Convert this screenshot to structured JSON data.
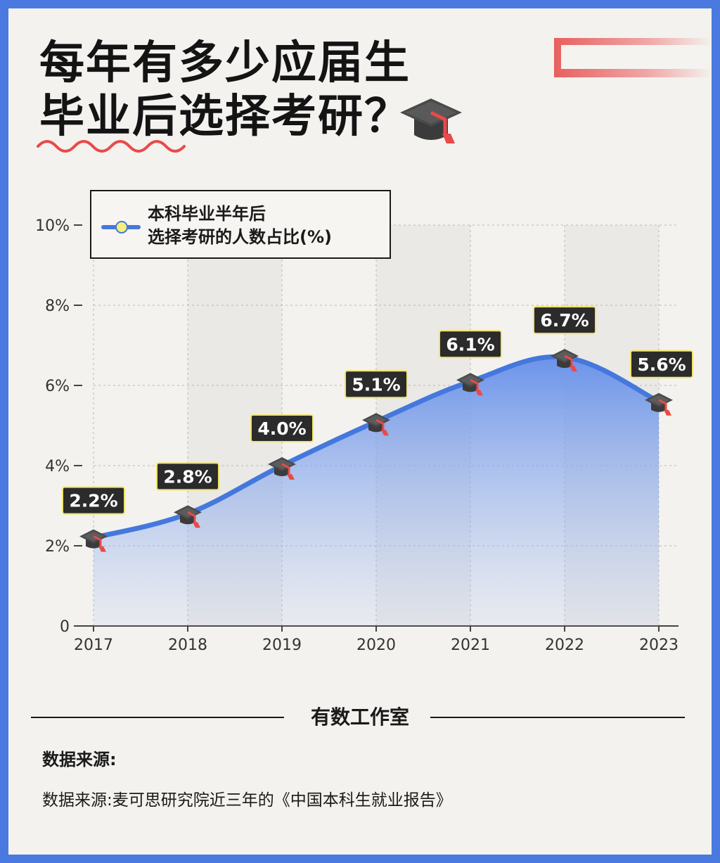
{
  "header": {
    "title_line1": "每年有多少应届生",
    "title_line2": "毕业后选择考研？"
  },
  "colors": {
    "accent": "#4478dd",
    "area_top": "#6b93ea",
    "highlight": "#e84a4a",
    "label_bg": "#2b2b2b",
    "label_border": "#f0e46a"
  },
  "icons": {
    "title": "graduation-cap-icon",
    "marker": "graduation-cap-icon"
  },
  "chart_data": {
    "type": "area",
    "title": "",
    "xlabel": "",
    "ylabel": "",
    "categories": [
      "2017",
      "2018",
      "2019",
      "2020",
      "2021",
      "2022",
      "2023"
    ],
    "series": [
      {
        "name": "本科毕业半年后选择考研的人数占比(%)",
        "values": [
          2.2,
          2.8,
          4.0,
          5.1,
          6.1,
          6.7,
          5.6
        ],
        "labels": [
          "2.2%",
          "2.8%",
          "4.0%",
          "5.1%",
          "6.1%",
          "6.7%",
          "5.6%"
        ]
      }
    ],
    "ylim": [
      0,
      10
    ],
    "yticks": [
      0,
      2,
      4,
      6,
      8,
      10
    ],
    "ytick_labels": [
      "0",
      "2%",
      "4%",
      "6%",
      "8%",
      "10%"
    ],
    "grid": true,
    "legend": {
      "position": "top-left",
      "line1": "本科毕业半年后",
      "line2": "选择考研的人数占比(%)"
    }
  },
  "footer": {
    "brand": "有数工作室",
    "source_heading": "数据来源:",
    "source_text": "数据来源:麦可思研究院近三年的《中国本科生就业报告》"
  }
}
